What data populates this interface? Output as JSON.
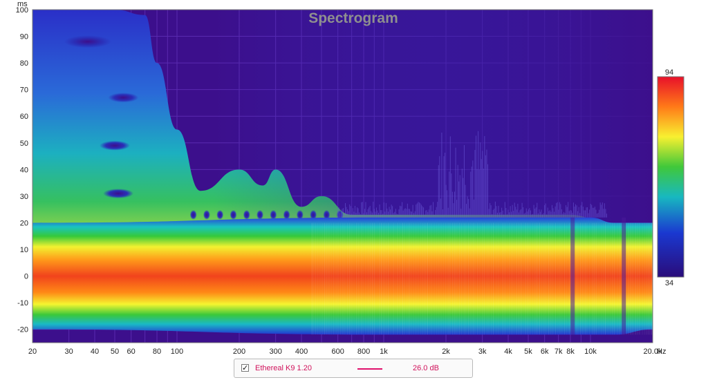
{
  "chart_data": {
    "type": "heatmap",
    "title": "Spectrogram",
    "x_unit": "Hz",
    "y_unit": "ms",
    "x_scale": "log",
    "xlim": [
      20,
      20000
    ],
    "ylim": [
      -25,
      100
    ],
    "x_ticks": [
      {
        "value": 20,
        "label": "20"
      },
      {
        "value": 30,
        "label": "30"
      },
      {
        "value": 40,
        "label": "40"
      },
      {
        "value": 50,
        "label": "50"
      },
      {
        "value": 60,
        "label": "60"
      },
      {
        "value": 80,
        "label": "80"
      },
      {
        "value": 100,
        "label": "100"
      },
      {
        "value": 200,
        "label": "200"
      },
      {
        "value": 300,
        "label": "300"
      },
      {
        "value": 400,
        "label": "400"
      },
      {
        "value": 600,
        "label": "600"
      },
      {
        "value": 800,
        "label": "800"
      },
      {
        "value": 1000,
        "label": "1k"
      },
      {
        "value": 2000,
        "label": "2k"
      },
      {
        "value": 3000,
        "label": "3k"
      },
      {
        "value": 4000,
        "label": "4k"
      },
      {
        "value": 5000,
        "label": "5k"
      },
      {
        "value": 6000,
        "label": "6k"
      },
      {
        "value": 7000,
        "label": "7k"
      },
      {
        "value": 8000,
        "label": "8k"
      },
      {
        "value": 10000,
        "label": "10k"
      },
      {
        "value": 20000,
        "label": "20.0k"
      }
    ],
    "y_ticks": [
      100,
      90,
      80,
      70,
      60,
      50,
      40,
      30,
      20,
      10,
      0,
      -10,
      -20
    ],
    "colorbar": {
      "min": 34,
      "max": 94,
      "min_label": "34",
      "max_label": "94"
    },
    "grid": true,
    "legend_position": "bottom-center",
    "decay_envelope_ms": [
      {
        "freq": 20,
        "ms": 100
      },
      {
        "freq": 50,
        "ms": 100
      },
      {
        "freq": 70,
        "ms": 98
      },
      {
        "freq": 80,
        "ms": 80
      },
      {
        "freq": 100,
        "ms": 55
      },
      {
        "freq": 130,
        "ms": 32
      },
      {
        "freq": 200,
        "ms": 40
      },
      {
        "freq": 260,
        "ms": 34
      },
      {
        "freq": 300,
        "ms": 40
      },
      {
        "freq": 400,
        "ms": 26
      },
      {
        "freq": 500,
        "ms": 30
      },
      {
        "freq": 700,
        "ms": 23
      },
      {
        "freq": 1000,
        "ms": 23
      },
      {
        "freq": 2000,
        "ms": 23
      },
      {
        "freq": 8000,
        "ms": 23
      },
      {
        "freq": 12000,
        "ms": 20
      },
      {
        "freq": 20000,
        "ms": 20
      }
    ],
    "high_level_band_ms": [
      {
        "freq": 20,
        "from": -20,
        "to": 20
      },
      {
        "freq": 1000,
        "from": -22,
        "to": 22
      },
      {
        "freq": 10000,
        "from": -22,
        "to": 22
      },
      {
        "freq": 13000,
        "from": -22,
        "to": 20
      },
      {
        "freq": 20000,
        "from": -20,
        "to": 20
      }
    ]
  },
  "legend": {
    "checked_mark": "✓",
    "series_name": "Ethereal K9 1.20",
    "series_value": "26.0 dB",
    "series_color": "#e0106a"
  },
  "colors": {
    "background": "#3c0f8c",
    "grid": "#5a2ab0"
  }
}
